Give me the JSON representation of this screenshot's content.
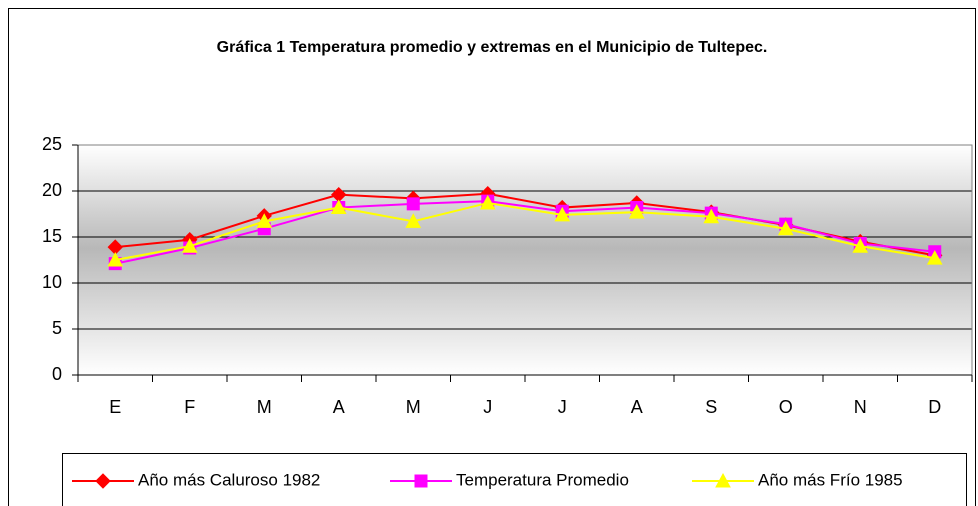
{
  "chart_data": {
    "type": "line",
    "title": "Gráfica 1 Temperatura promedio y extremas en el Municipio de Tultepec.",
    "categories": [
      "E",
      "F",
      "M",
      "A",
      "M",
      "J",
      "J",
      "A",
      "S",
      "O",
      "N",
      "D"
    ],
    "series": [
      {
        "name": "Año más Caluroso 1982",
        "color": "#ff0000",
        "marker": "diamond",
        "values": [
          13.9,
          14.7,
          17.3,
          19.6,
          19.2,
          19.7,
          18.2,
          18.7,
          17.7,
          16.3,
          14.5,
          13.0
        ]
      },
      {
        "name": "Temperatura Promedio",
        "color": "#ff00ff",
        "marker": "square",
        "values": [
          12.1,
          13.8,
          15.9,
          18.2,
          18.6,
          18.9,
          17.8,
          18.2,
          17.6,
          16.4,
          14.3,
          13.4
        ]
      },
      {
        "name": "Año más Frío 1985",
        "color": "#ffff00",
        "marker": "triangle",
        "values": [
          12.5,
          14.0,
          16.7,
          18.2,
          16.7,
          18.7,
          17.4,
          17.7,
          17.2,
          15.9,
          14.0,
          12.7
        ]
      }
    ],
    "ylim": [
      0,
      25
    ],
    "yticks": [
      0,
      5,
      10,
      15,
      20,
      25
    ],
    "grid": true,
    "legend": "bottom"
  }
}
